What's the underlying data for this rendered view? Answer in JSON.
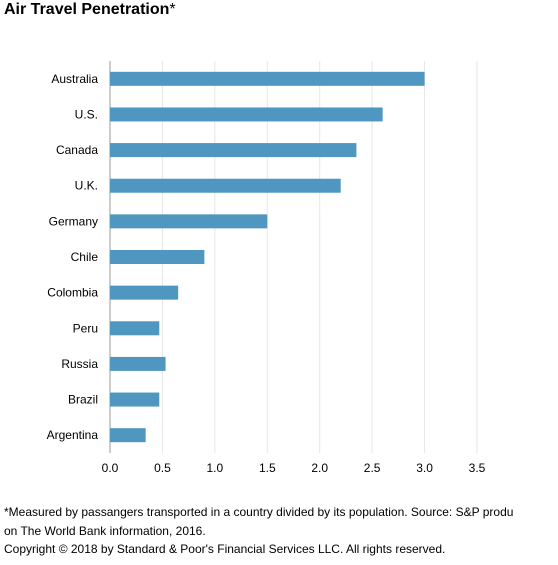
{
  "chart_data": {
    "type": "bar",
    "orientation": "horizontal",
    "title": "Air Travel Penetration",
    "title_mark": "*",
    "categories": [
      "Australia",
      "U.S.",
      "Canada",
      "U.K.",
      "Germany",
      "Chile",
      "Colombia",
      "Peru",
      "Russia",
      "Brazil",
      "Argentina"
    ],
    "values": [
      3.0,
      2.6,
      2.35,
      2.2,
      1.5,
      0.9,
      0.65,
      0.47,
      0.53,
      0.47,
      0.34
    ],
    "xlim": [
      0,
      3.5
    ],
    "xticks": [
      "0.0",
      "0.5",
      "1.0",
      "1.5",
      "2.0",
      "2.5",
      "3.0",
      "3.5"
    ],
    "xlabel": "",
    "ylabel": "",
    "grid": "vertical",
    "bar_color": "#4f97c0",
    "grid_color": "#e6e6e6"
  },
  "footnote": {
    "line1": "*Measured by passangers transported in a country divided by its population. Source: S&P produ",
    "line2": "on The World Bank information, 2016."
  },
  "copyright": "Copyright © 2018 by Standard & Poor's Financial Services LLC. All rights reserved."
}
